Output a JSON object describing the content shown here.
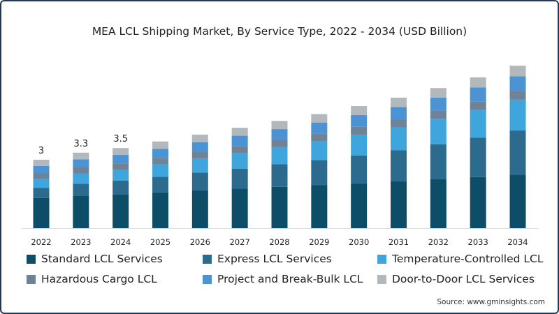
{
  "chart_data": {
    "type": "bar",
    "stacked": true,
    "title": "MEA LCL Shipping Market, By Service Type, 2022 - 2034 (USD Billion)",
    "xlabel": "",
    "ylabel": "",
    "ylim": [
      0,
      7.5
    ],
    "grid": false,
    "legend_position": "bottom",
    "categories": [
      "2022",
      "2023",
      "2024",
      "2025",
      "2026",
      "2027",
      "2028",
      "2029",
      "2030",
      "2031",
      "2032",
      "2033",
      "2034"
    ],
    "series": [
      {
        "name": "Standard LCL Services",
        "color": "#0d4d68",
        "values": [
          1.32,
          1.42,
          1.48,
          1.57,
          1.65,
          1.73,
          1.81,
          1.88,
          1.96,
          2.05,
          2.14,
          2.24,
          2.35
        ]
      },
      {
        "name": "Express LCL Services",
        "color": "#2d6b8e",
        "values": [
          0.45,
          0.53,
          0.6,
          0.68,
          0.78,
          0.88,
          0.99,
          1.1,
          1.23,
          1.37,
          1.54,
          1.72,
          1.93
        ]
      },
      {
        "name": "Temperature-Controlled LCL",
        "color": "#3ea6dc",
        "values": [
          0.39,
          0.45,
          0.49,
          0.55,
          0.62,
          0.68,
          0.75,
          0.83,
          0.91,
          1.0,
          1.11,
          1.22,
          1.35
        ]
      },
      {
        "name": "Hazardous Cargo LCL",
        "color": "#6e8298",
        "values": [
          0.24,
          0.26,
          0.27,
          0.28,
          0.3,
          0.31,
          0.32,
          0.33,
          0.34,
          0.35,
          0.36,
          0.38,
          0.39
        ]
      },
      {
        "name": "Project and Break-Bulk LCL",
        "color": "#4b93d3",
        "values": [
          0.33,
          0.36,
          0.37,
          0.4,
          0.42,
          0.45,
          0.47,
          0.49,
          0.52,
          0.54,
          0.57,
          0.61,
          0.64
        ]
      },
      {
        "name": "Door-to-Door LCL Services",
        "color": "#b3b8bd",
        "values": [
          0.27,
          0.29,
          0.3,
          0.32,
          0.33,
          0.35,
          0.36,
          0.37,
          0.39,
          0.41,
          0.42,
          0.44,
          0.46
        ]
      }
    ],
    "data_labels": [
      {
        "category": "2022",
        "text": "3"
      },
      {
        "category": "2023",
        "text": "3.3"
      },
      {
        "category": "2024",
        "text": "3.5"
      }
    ],
    "source": "Source: www.gminsights.com"
  }
}
